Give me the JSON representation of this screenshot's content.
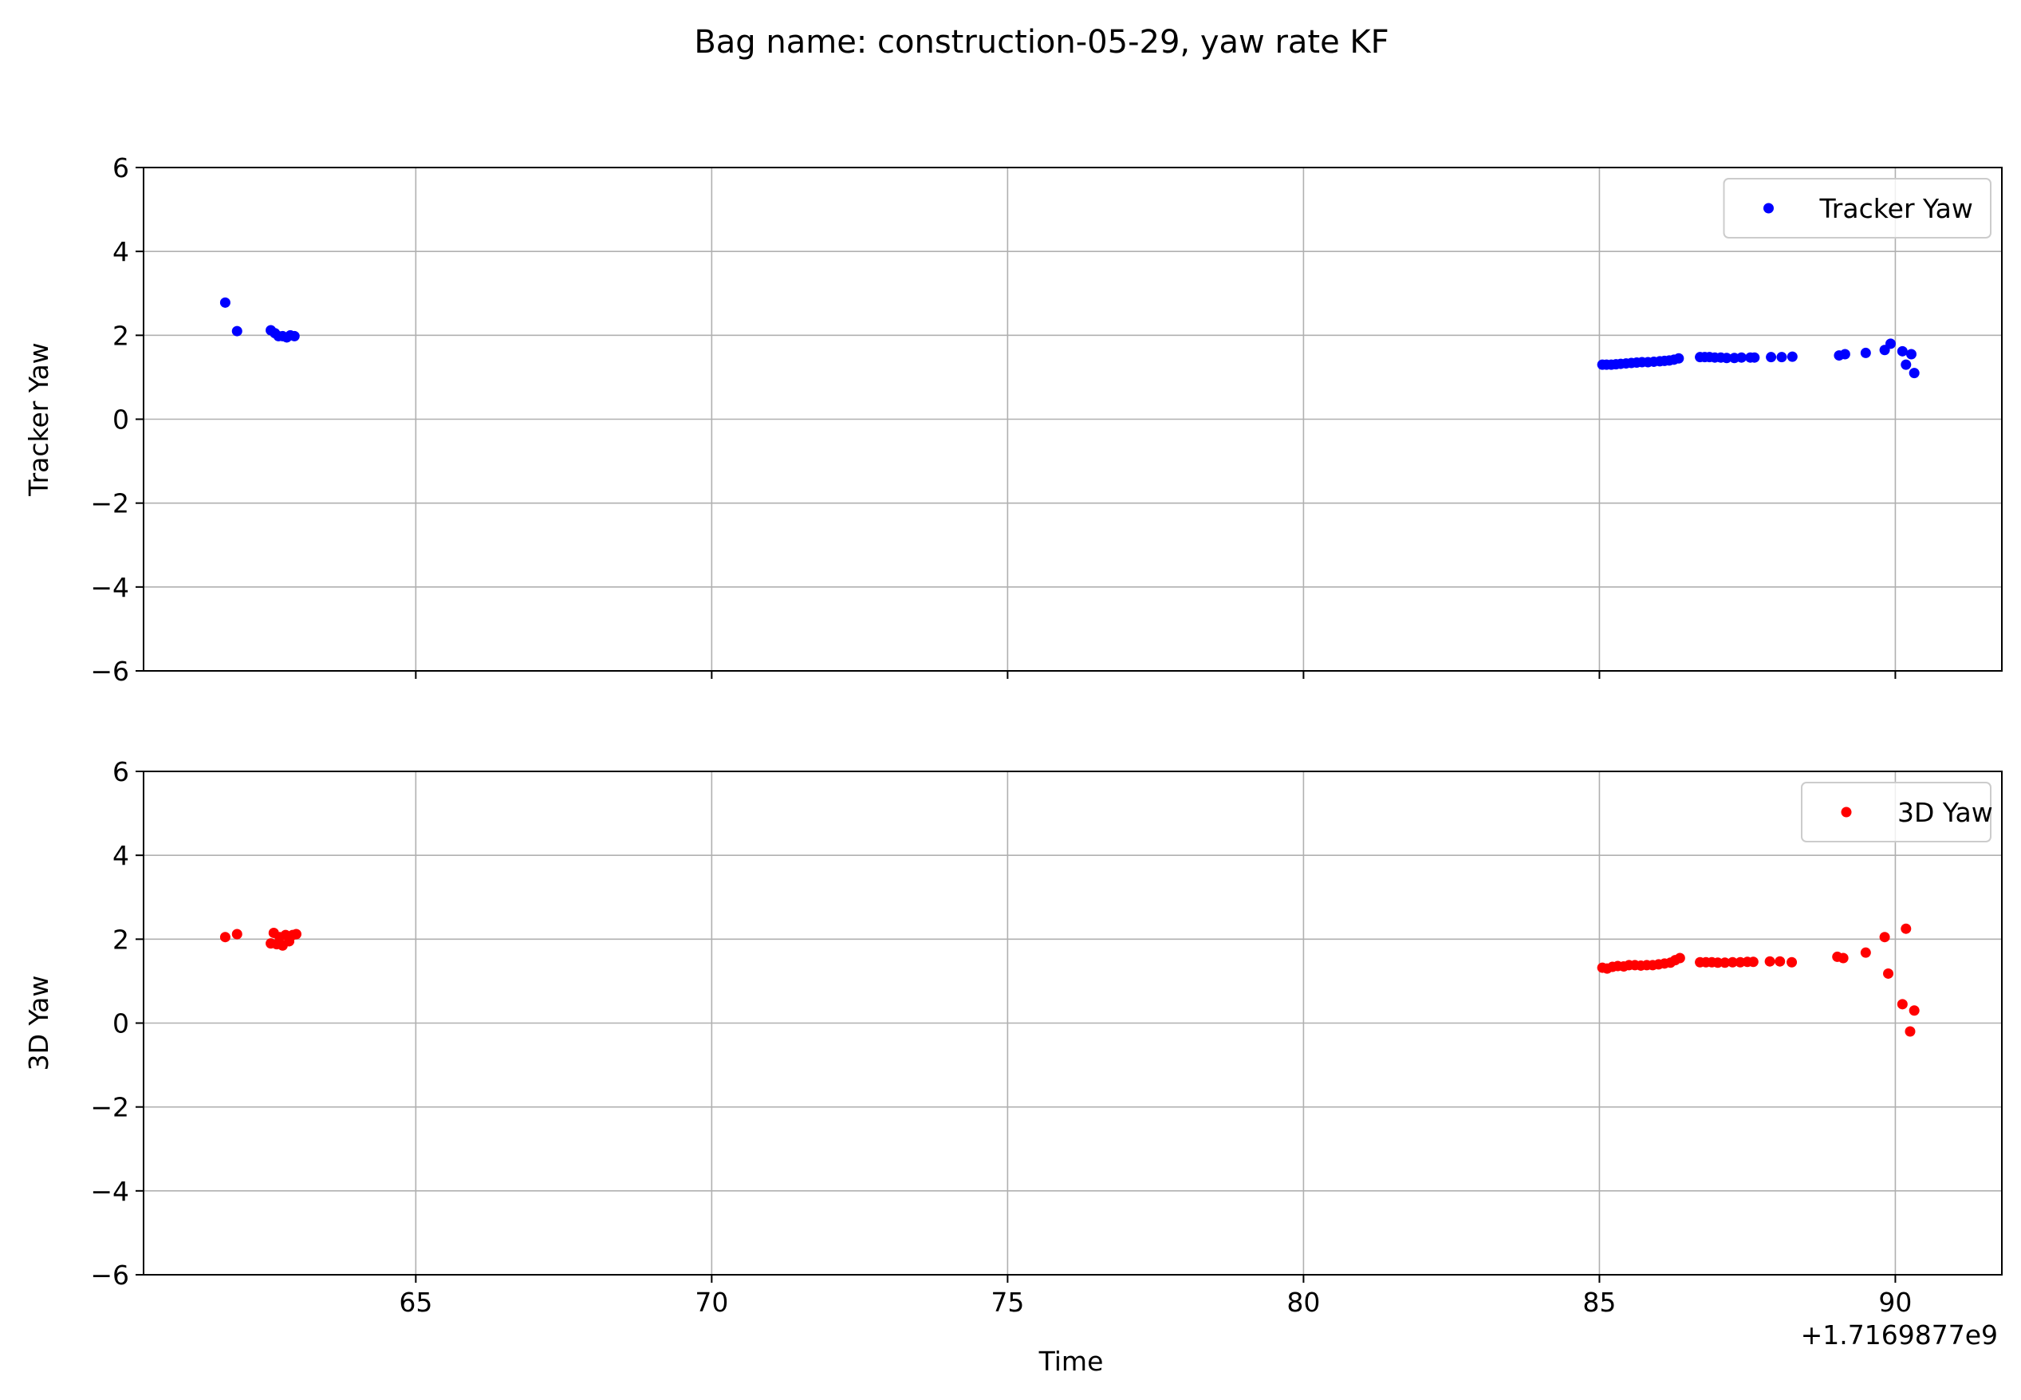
{
  "figure": {
    "title": "Bag name: construction-05-29, yaw rate KF",
    "x_offset_label": "+1.7169877e9",
    "xlabel": "Time"
  },
  "chart_data": [
    {
      "type": "scatter",
      "title": "",
      "xlabel": "",
      "ylabel": "Tracker Yaw",
      "xlim": [
        60.4,
        91.8
      ],
      "ylim": [
        -6,
        6
      ],
      "x_ticks": [
        65,
        70,
        75,
        80,
        85,
        90
      ],
      "x_tick_labels_shown": false,
      "y_ticks": [
        6,
        4,
        2,
        0,
        -2,
        -4,
        -6
      ],
      "grid": true,
      "legend": "top-right",
      "series": [
        {
          "name": "Tracker Yaw",
          "color": "#0000ff",
          "points": [
            [
              61.78,
              2.78
            ],
            [
              61.98,
              2.1
            ],
            [
              62.55,
              2.12
            ],
            [
              62.62,
              2.05
            ],
            [
              62.68,
              1.98
            ],
            [
              62.75,
              1.98
            ],
            [
              62.82,
              1.95
            ],
            [
              62.88,
              2.0
            ],
            [
              62.95,
              1.98
            ],
            [
              85.05,
              1.3
            ],
            [
              85.12,
              1.3
            ],
            [
              85.2,
              1.3
            ],
            [
              85.28,
              1.31
            ],
            [
              85.36,
              1.32
            ],
            [
              85.45,
              1.33
            ],
            [
              85.54,
              1.34
            ],
            [
              85.63,
              1.35
            ],
            [
              85.72,
              1.36
            ],
            [
              85.82,
              1.36
            ],
            [
              85.92,
              1.37
            ],
            [
              86.02,
              1.38
            ],
            [
              86.1,
              1.39
            ],
            [
              86.18,
              1.4
            ],
            [
              86.26,
              1.42
            ],
            [
              86.34,
              1.45
            ],
            [
              86.7,
              1.48
            ],
            [
              86.78,
              1.48
            ],
            [
              86.86,
              1.48
            ],
            [
              86.95,
              1.47
            ],
            [
              87.05,
              1.47
            ],
            [
              87.15,
              1.46
            ],
            [
              87.28,
              1.46
            ],
            [
              87.4,
              1.47
            ],
            [
              87.55,
              1.47
            ],
            [
              87.62,
              1.47
            ],
            [
              87.9,
              1.48
            ],
            [
              88.08,
              1.48
            ],
            [
              88.26,
              1.49
            ],
            [
              89.05,
              1.52
            ],
            [
              89.15,
              1.55
            ],
            [
              89.5,
              1.58
            ],
            [
              89.82,
              1.65
            ],
            [
              89.92,
              1.8
            ],
            [
              90.12,
              1.62
            ],
            [
              90.18,
              1.3
            ],
            [
              90.27,
              1.55
            ],
            [
              90.32,
              1.1
            ]
          ]
        }
      ]
    },
    {
      "type": "scatter",
      "title": "",
      "xlabel": "Time",
      "ylabel": "3D Yaw",
      "xlim": [
        60.4,
        91.8
      ],
      "ylim": [
        -6,
        6
      ],
      "x_ticks": [
        65,
        70,
        75,
        80,
        85,
        90
      ],
      "y_ticks": [
        6,
        4,
        2,
        0,
        -2,
        -4,
        -6
      ],
      "grid": true,
      "legend": "top-right",
      "series": [
        {
          "name": "3D Yaw",
          "color": "#ff0000",
          "points": [
            [
              61.78,
              2.05
            ],
            [
              61.98,
              2.12
            ],
            [
              62.55,
              1.9
            ],
            [
              62.6,
              2.15
            ],
            [
              62.65,
              1.88
            ],
            [
              62.7,
              2.05
            ],
            [
              62.75,
              1.85
            ],
            [
              62.8,
              2.1
            ],
            [
              62.86,
              1.95
            ],
            [
              62.92,
              2.1
            ],
            [
              62.98,
              2.12
            ],
            [
              85.05,
              1.32
            ],
            [
              85.13,
              1.3
            ],
            [
              85.22,
              1.34
            ],
            [
              85.31,
              1.36
            ],
            [
              85.41,
              1.35
            ],
            [
              85.5,
              1.38
            ],
            [
              85.6,
              1.38
            ],
            [
              85.7,
              1.37
            ],
            [
              85.8,
              1.38
            ],
            [
              85.9,
              1.38
            ],
            [
              86.0,
              1.4
            ],
            [
              86.1,
              1.42
            ],
            [
              86.2,
              1.44
            ],
            [
              86.28,
              1.5
            ],
            [
              86.36,
              1.55
            ],
            [
              86.7,
              1.45
            ],
            [
              86.8,
              1.45
            ],
            [
              86.9,
              1.45
            ],
            [
              87.0,
              1.44
            ],
            [
              87.12,
              1.44
            ],
            [
              87.25,
              1.45
            ],
            [
              87.38,
              1.45
            ],
            [
              87.5,
              1.46
            ],
            [
              87.6,
              1.46
            ],
            [
              87.88,
              1.47
            ],
            [
              88.05,
              1.47
            ],
            [
              88.25,
              1.45
            ],
            [
              89.02,
              1.58
            ],
            [
              89.12,
              1.55
            ],
            [
              89.5,
              1.68
            ],
            [
              89.82,
              2.05
            ],
            [
              89.88,
              1.18
            ],
            [
              90.12,
              0.45
            ],
            [
              90.18,
              2.25
            ],
            [
              90.25,
              -0.2
            ],
            [
              90.32,
              0.3
            ]
          ]
        }
      ]
    }
  ]
}
